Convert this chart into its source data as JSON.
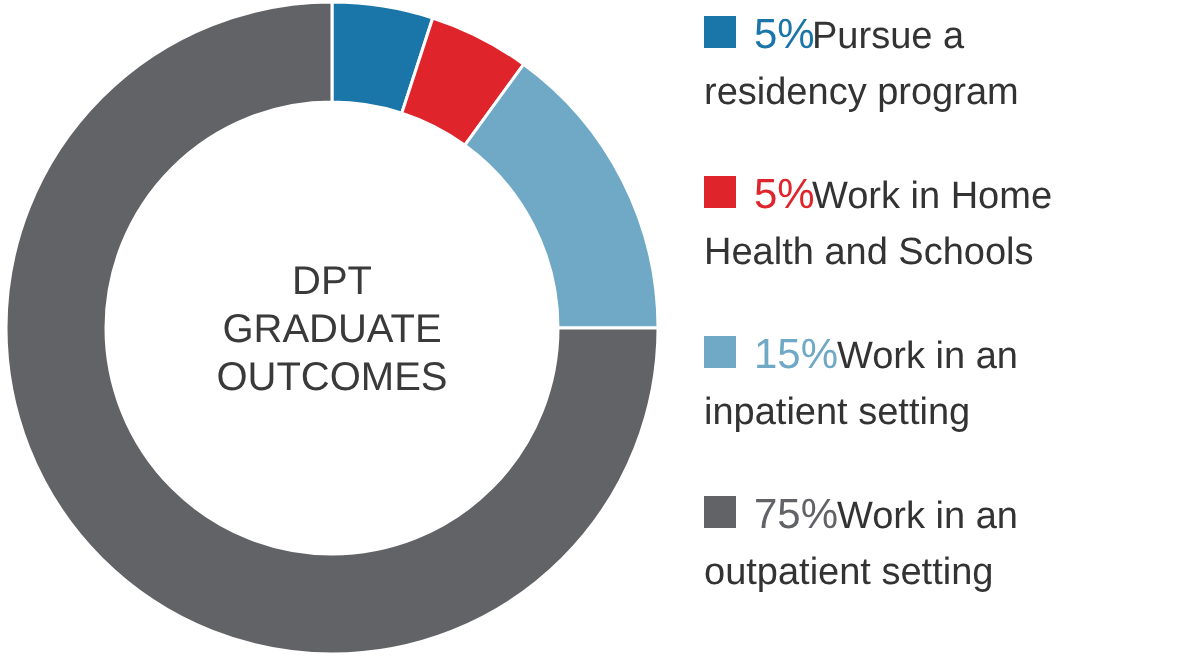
{
  "chart_data": {
    "type": "donut",
    "title": "DPT GRADUATE OUTCOMES",
    "categories": [
      "Pursue a residency program",
      "Work in Home Health and Schools",
      "Work in an inpatient setting",
      "Work in an outpatient setting"
    ],
    "values": [
      5,
      5,
      15,
      75
    ],
    "value_labels": [
      "5%",
      "5%",
      "15%",
      "75%"
    ],
    "colors": [
      "#1a75a8",
      "#e0242b",
      "#6fa9c6",
      "#626366"
    ],
    "legend": "right"
  }
}
